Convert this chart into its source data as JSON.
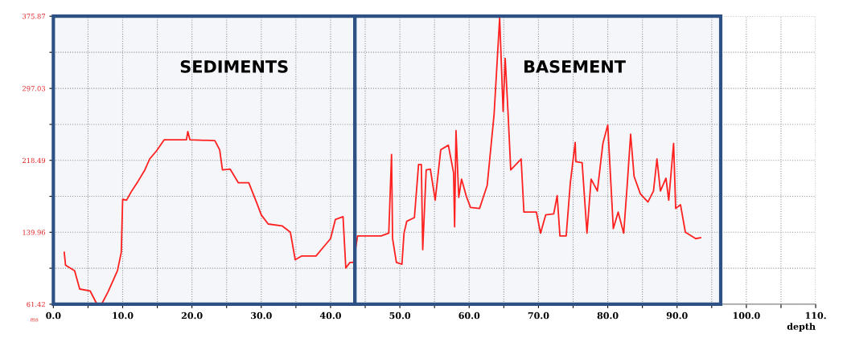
{
  "chart_data": {
    "type": "line",
    "xlabel": "depth",
    "ylabel": "ms",
    "series": [
      {
        "color": "#ff2020",
        "x": [
          1.57,
          1.76,
          3.07,
          3.8,
          5.3,
          6.25,
          7.0,
          7.9,
          9.25,
          9.8,
          10.0,
          10.56,
          11.3,
          12.25,
          13.2,
          13.9,
          14.9,
          16.0,
          19.2,
          19.4,
          19.7,
          23.3,
          24.0,
          24.4,
          25.5,
          26.7,
          28.2,
          29.3,
          30.0,
          31.0,
          33.0,
          34.2,
          34.9,
          35.8,
          37.9,
          39.0,
          40.0,
          40.7,
          41.8,
          42.2,
          42.8,
          43.3,
          43.9,
          47.3,
          48.4,
          48.8,
          48.95,
          49.5,
          50.3,
          50.6,
          51.0,
          52.1,
          52.7,
          53.1,
          53.3,
          53.8,
          54.4,
          55.1,
          55.9,
          57.0,
          57.75,
          57.9,
          58.1,
          58.5,
          58.9,
          59.6,
          60.2,
          61.5,
          62.6,
          63.6,
          64.4,
          64.9,
          65.2,
          65.6,
          66.0,
          67.5,
          67.9,
          69.7,
          70.3,
          71.05,
          72.2,
          72.7,
          73.1,
          74.0,
          74.6,
          75.3,
          75.4,
          76.3,
          77.0,
          77.6,
          78.5,
          79.3,
          80.0,
          80.8,
          81.5,
          82.3,
          82.8,
          83.3,
          83.8,
          84.7,
          85.8,
          86.6,
          87.1,
          87.6,
          88.4,
          88.8,
          89.5,
          89.8,
          90.5,
          91.2,
          92.7,
          93.4
        ],
        "values": [
          118,
          104,
          98,
          78,
          76,
          62,
          62,
          75,
          98,
          118,
          176,
          175,
          185,
          196,
          208,
          220,
          229,
          241,
          241,
          250,
          241,
          240,
          230,
          208,
          209,
          194,
          194,
          173,
          159,
          149,
          147,
          140,
          110,
          114,
          114,
          124,
          133,
          154,
          157,
          101,
          107,
          107,
          136,
          136,
          139,
          225,
          133,
          107,
          105,
          139,
          152,
          156,
          214,
          214,
          121,
          208,
          209,
          175,
          230,
          235,
          205,
          146,
          251,
          178,
          198,
          179,
          167,
          166,
          191,
          269,
          374,
          272,
          330,
          272,
          208,
          220,
          162,
          162,
          139,
          159,
          160,
          180,
          136,
          136,
          194,
          238,
          217,
          216,
          139,
          198,
          185,
          237,
          257,
          144,
          162,
          139,
          191,
          247,
          201,
          182,
          173,
          185,
          220,
          185,
          199,
          175,
          237,
          166,
          170,
          140,
          133,
          134
        ]
      }
    ],
    "bands": [
      {
        "axis": "x",
        "from": 0,
        "to": 43.5,
        "label": "SEDIMENTS",
        "color": "#2e5185"
      },
      {
        "axis": "x",
        "from": 43.5,
        "to": 96.3,
        "label": "BASEMENT",
        "color": "#2e5185"
      }
    ],
    "xlim": [
      0,
      110
    ],
    "xticks": [
      {
        "value": 0,
        "label": "0.0"
      },
      {
        "value": 5,
        "label": null
      },
      {
        "value": 10,
        "label": "10.0"
      },
      {
        "value": 15,
        "label": null
      },
      {
        "value": 20,
        "label": "20.0"
      },
      {
        "value": 25,
        "label": null
      },
      {
        "value": 30,
        "label": "30.0"
      },
      {
        "value": 35,
        "label": null
      },
      {
        "value": 40,
        "label": "40.0"
      },
      {
        "value": 45,
        "label": null
      },
      {
        "value": 50,
        "label": "50.0"
      },
      {
        "value": 55,
        "label": null
      },
      {
        "value": 60,
        "label": "60.0"
      },
      {
        "value": 65,
        "label": null
      },
      {
        "value": 70,
        "label": "70.0"
      },
      {
        "value": 75,
        "label": null
      },
      {
        "value": 80,
        "label": "80.0"
      },
      {
        "value": 85,
        "label": null
      },
      {
        "value": 90,
        "label": "90.0"
      },
      {
        "value": 95,
        "label": null
      },
      {
        "value": 100,
        "label": "100.0"
      },
      {
        "value": 105,
        "label": null
      },
      {
        "value": 110,
        "label": "110."
      }
    ],
    "ylim": [
      61.42,
      375.87
    ],
    "yticks": [
      61.42,
      {
        "value": 100.69,
        "label": null
      },
      139.96,
      {
        "value": 179.225,
        "label": null
      },
      218.49,
      {
        "value": 257.76,
        "label": null
      },
      297.03,
      {
        "value": 336.45,
        "label": null
      },
      375.87
    ],
    "grid": true,
    "marker": "none",
    "line_style": "solid",
    "legend": false
  }
}
